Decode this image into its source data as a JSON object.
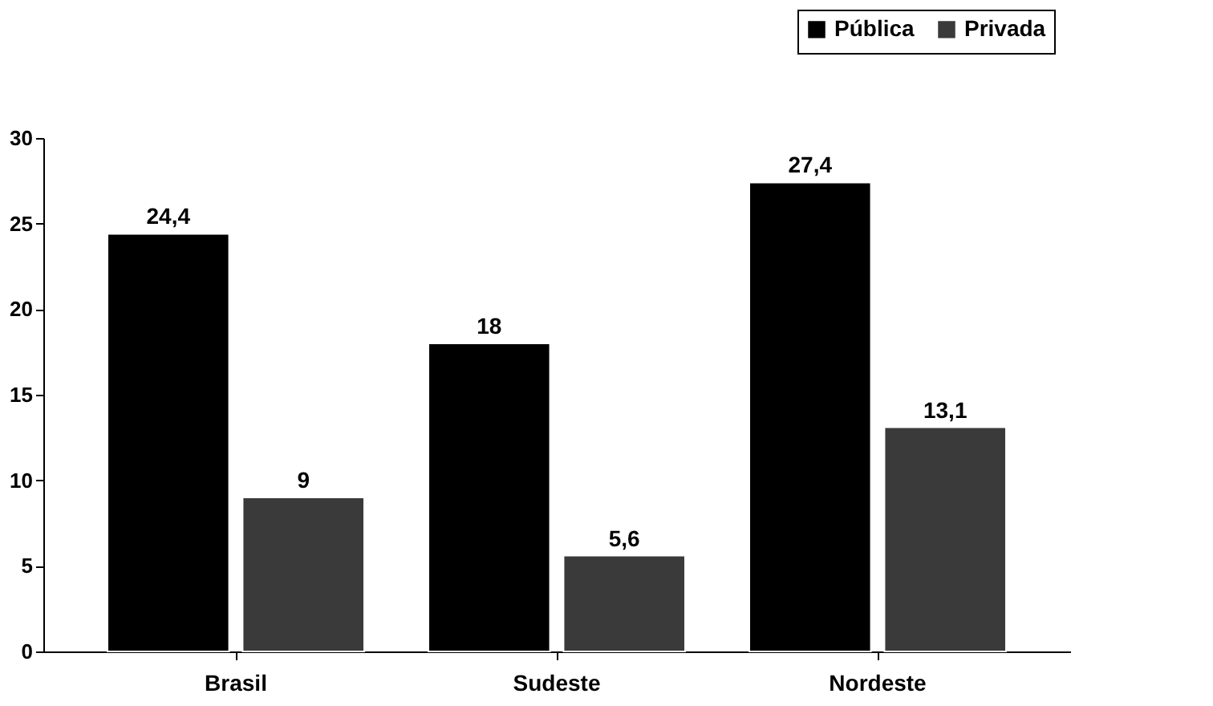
{
  "chart_data": {
    "type": "bar",
    "categories": [
      "Brasil",
      "Sudeste",
      "Nordeste"
    ],
    "series": [
      {
        "name": "Pública",
        "color": "#000000",
        "values": [
          24.4,
          18,
          27.4
        ],
        "value_labels": [
          "24,4",
          "18",
          "27,4"
        ]
      },
      {
        "name": "Privada",
        "color": "#3a3a3a",
        "values": [
          9,
          5.6,
          13.1
        ],
        "value_labels": [
          "9",
          "5,6",
          "13,1"
        ]
      }
    ],
    "ylim": [
      0,
      30
    ],
    "yticks": [
      0,
      5,
      10,
      15,
      20,
      25,
      30
    ],
    "grid": false,
    "legend": "top right"
  }
}
